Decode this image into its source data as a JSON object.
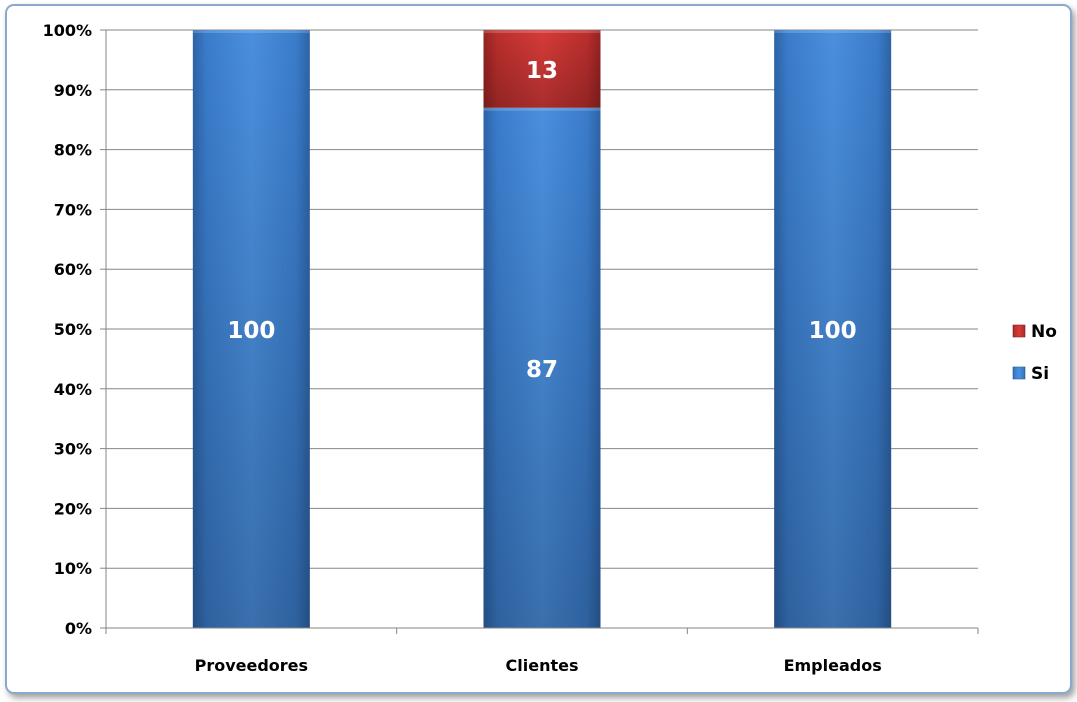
{
  "chart_data": {
    "type": "bar",
    "stacked": true,
    "normalized_percent": true,
    "categories": [
      "Proveedores",
      "Clientes",
      "Empleados"
    ],
    "series": [
      {
        "name": "Si",
        "values": [
          100,
          87,
          100
        ],
        "color": "#3b7fce"
      },
      {
        "name": "No",
        "values": [
          0,
          13,
          0
        ],
        "color": "#c0302f"
      }
    ],
    "yticks": [
      "0%",
      "10%",
      "20%",
      "30%",
      "40%",
      "50%",
      "60%",
      "70%",
      "80%",
      "90%",
      "100%"
    ],
    "ylim": [
      0,
      100
    ],
    "grid": true,
    "legend_position": "right",
    "legend_order": [
      "No",
      "Si"
    ],
    "title": "",
    "xlabel": "",
    "ylabel": ""
  }
}
